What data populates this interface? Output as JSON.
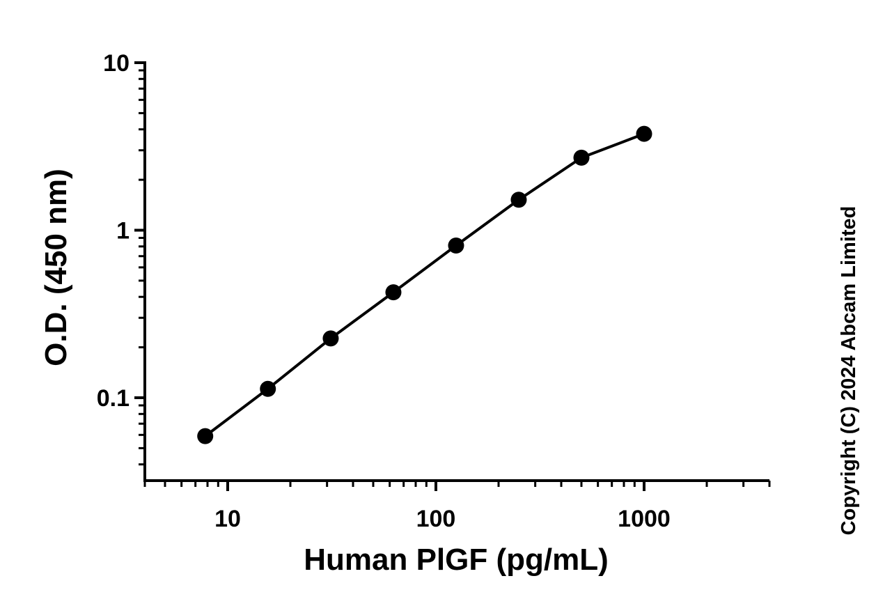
{
  "chart_data": {
    "type": "scatter",
    "x_label": "Human PlGF (pg/mL)",
    "y_label": "O.D. (450 nm)",
    "x": [
      7.8,
      15.6,
      31.25,
      62.5,
      125,
      250,
      500,
      1000
    ],
    "values": [
      0.059,
      0.113,
      0.226,
      0.426,
      0.81,
      1.52,
      2.71,
      3.76
    ],
    "color": "#000000",
    "connect": true,
    "xlim": [
      4,
      4000
    ],
    "ylim": [
      0.032,
      10
    ],
    "xticks": [
      10,
      100,
      1000
    ],
    "yticks": [
      0.1,
      1,
      10
    ],
    "xlog": true,
    "ylog": true
  },
  "copyright": "Copyright (C) 2024 Abcam Limited"
}
